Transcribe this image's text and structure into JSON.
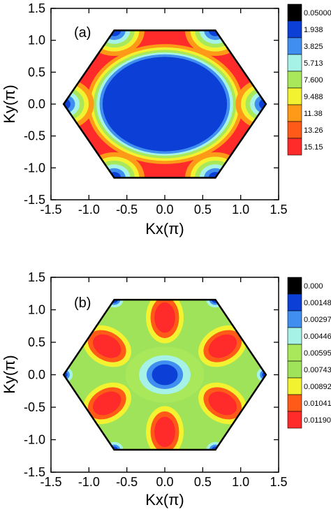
{
  "chart_data": [
    {
      "type": "heatmap",
      "panel_label": "(a)",
      "xlabel": "Kx(π)",
      "ylabel": "Ky(π)",
      "xlim": [
        -1.5,
        1.5
      ],
      "ylim": [
        -1.5,
        1.5
      ],
      "xticks": [
        "-1.5",
        "-1.0",
        "-0.5",
        "0.0",
        "0.5",
        "1.0",
        "1.5"
      ],
      "yticks": [
        "1.5",
        "1.0",
        "0.5",
        "0.0",
        "-0.5",
        "-1.0",
        "-1.5"
      ],
      "brillouin_zone": "hexagon",
      "hexagon_vertices": [
        [
          1.333,
          0.0
        ],
        [
          0.667,
          1.155
        ],
        [
          -0.667,
          1.155
        ],
        [
          -1.333,
          0.0
        ],
        [
          -0.667,
          -1.155
        ],
        [
          0.667,
          -1.155
        ]
      ],
      "color_levels": [
        "0.05000",
        "1.938",
        "3.825",
        "5.713",
        "7.600",
        "9.488",
        "11.38",
        "13.26",
        "15.15"
      ],
      "level_colors": [
        "#000000",
        "#0b3fd6",
        "#3f8ef0",
        "#a6f2e6",
        "#a8e85a",
        "#f2f230",
        "#ff9a18",
        "#ff5a18",
        "#ff2a2a"
      ],
      "description_features": {
        "center_value": 0.05,
        "ring_max": 15.15,
        "corner_pocket_value": 1.938
      }
    },
    {
      "type": "heatmap",
      "panel_label": "(b)",
      "xlabel": "Kx(π)",
      "ylabel": "Ky(π)",
      "xlim": [
        -1.5,
        1.5
      ],
      "ylim": [
        -1.5,
        1.5
      ],
      "xticks": [
        "-1.5",
        "-1.0",
        "-0.5",
        "0.0",
        "0.5",
        "1.0",
        "1.5"
      ],
      "yticks": [
        "1.5",
        "1.0",
        "0.5",
        "0.0",
        "-0.5",
        "-1.0",
        "-1.5"
      ],
      "brillouin_zone": "hexagon",
      "hexagon_vertices": [
        [
          1.333,
          0.0
        ],
        [
          0.667,
          1.155
        ],
        [
          -0.667,
          1.155
        ],
        [
          -1.333,
          0.0
        ],
        [
          -0.667,
          -1.155
        ],
        [
          0.667,
          -1.155
        ]
      ],
      "color_levels": [
        "0.000",
        "0.001488",
        "0.002975",
        "0.004463",
        "0.005950",
        "0.007438",
        "0.008925",
        "0.01041",
        "0.01190"
      ],
      "level_colors": [
        "#000000",
        "#0b3fd6",
        "#3f8ef0",
        "#a6f2e6",
        "#a8e85a",
        "#9fe35a",
        "#f2f230",
        "#ff5a18",
        "#ff2a2a"
      ],
      "description_features": {
        "center_value": 0.001488,
        "lobe_max": 0.0119,
        "corner_pocket_value": 0.001488
      }
    }
  ]
}
